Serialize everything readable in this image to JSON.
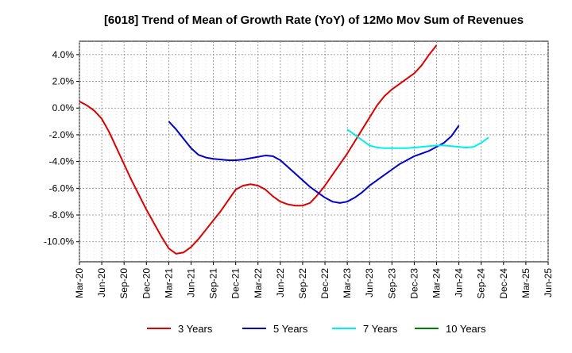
{
  "chart_data": {
    "type": "line",
    "title": "[6018]  Trend of Mean of Growth Rate (YoY) of 12Mo Mov Sum of Revenues",
    "xlabel": "",
    "ylabel": "",
    "ylim": [
      -11.5,
      5.0
    ],
    "y_ticks": [
      4.0,
      2.0,
      0.0,
      -2.0,
      -4.0,
      -6.0,
      -8.0,
      -10.0
    ],
    "y_tick_labels": [
      "4.0%",
      "2.0%",
      "0.0%",
      "-2.0%",
      "-4.0%",
      "-6.0%",
      "-8.0%",
      "-10.0%"
    ],
    "x_tick_labels": [
      "Mar-20",
      "Jun-20",
      "Sep-20",
      "Dec-20",
      "Mar-21",
      "Jun-21",
      "Sep-21",
      "Dec-21",
      "Mar-22",
      "Jun-22",
      "Sep-22",
      "Dec-22",
      "Mar-23",
      "Jun-23",
      "Sep-23",
      "Dec-23",
      "Mar-24",
      "Jun-24",
      "Sep-24",
      "Dec-24",
      "Mar-25",
      "Jun-25"
    ],
    "grid": true,
    "legend_position": "bottom",
    "series": [
      {
        "name": "3 Years",
        "color": "#dd0000",
        "start_index": 0,
        "values": [
          0.5,
          0.2,
          -0.2,
          -0.8,
          -1.8,
          -3.0,
          -4.2,
          -5.4,
          -6.5,
          -7.6,
          -8.6,
          -9.6,
          -10.5,
          -10.9,
          -10.8,
          -10.4,
          -9.8,
          -9.1,
          -8.4,
          -7.7,
          -6.9,
          -6.1,
          -5.8,
          -5.7,
          -5.8,
          -6.1,
          -6.6,
          -7.0,
          -7.2,
          -7.3,
          -7.3,
          -7.1,
          -6.5,
          -5.8,
          -5.0,
          -4.2,
          -3.4,
          -2.5,
          -1.6,
          -0.7,
          0.2,
          0.9,
          1.4,
          1.8,
          2.2,
          2.6,
          3.2,
          4.0,
          4.7
        ]
      },
      {
        "name": "5 Years",
        "color": "#0000cc",
        "start_index": 12,
        "values": [
          -1.0,
          -1.6,
          -2.3,
          -3.0,
          -3.5,
          -3.7,
          -3.8,
          -3.85,
          -3.9,
          -3.9,
          -3.85,
          -3.75,
          -3.65,
          -3.55,
          -3.6,
          -3.9,
          -4.4,
          -4.9,
          -5.4,
          -5.9,
          -6.3,
          -6.7,
          -7.0,
          -7.1,
          -7.0,
          -6.7,
          -6.3,
          -5.8,
          -5.4,
          -5.0,
          -4.6,
          -4.2,
          -3.9,
          -3.6,
          -3.4,
          -3.2,
          -2.9,
          -2.6,
          -2.1,
          -1.3
        ]
      },
      {
        "name": "7 Years",
        "color": "#00eeee",
        "start_index": 36,
        "values": [
          -1.6,
          -2.0,
          -2.4,
          -2.8,
          -2.95,
          -3.0,
          -3.0,
          -3.0,
          -3.0,
          -2.95,
          -2.9,
          -2.85,
          -2.8,
          -2.8,
          -2.85,
          -2.9,
          -2.95,
          -2.9,
          -2.6,
          -2.2
        ]
      },
      {
        "name": "10 Years",
        "color": "#008000",
        "start_index": 0,
        "values": []
      }
    ]
  }
}
